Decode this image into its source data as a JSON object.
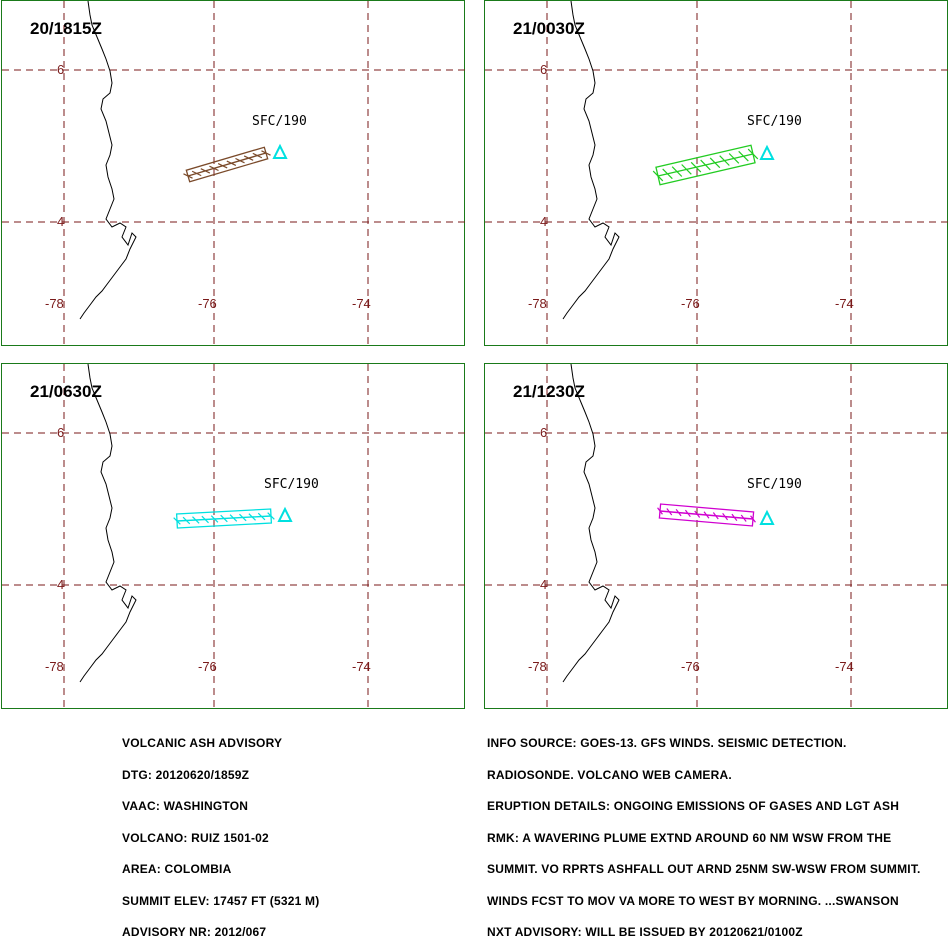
{
  "panels": [
    {
      "time": "20/1815Z",
      "level": "SFC/190",
      "color": "#7a4a2a"
    },
    {
      "time": "21/0030Z",
      "level": "SFC/190",
      "color": "#22cc22"
    },
    {
      "time": "21/0630Z",
      "level": "SFC/190",
      "color": "#00e0e0"
    },
    {
      "time": "21/1230Z",
      "level": "SFC/190",
      "color": "#d000d0"
    }
  ],
  "grid": {
    "lat_labels": [
      "6",
      "4"
    ],
    "lon_labels": [
      "-78",
      "-76",
      "-74"
    ],
    "line_color": "#7a1a1a"
  },
  "volcano_marker_color": "#00e0e0",
  "advisory_left": [
    "VOLCANIC ASH ADVISORY",
    "DTG: 20120620/1859Z",
    "VAAC: WASHINGTON",
    "VOLCANO: RUIZ 1501-02",
    "AREA: COLOMBIA",
    "SUMMIT ELEV: 17457 FT (5321 M)",
    "ADVISORY NR: 2012/067"
  ],
  "advisory_right": [
    "INFO SOURCE: GOES-13. GFS WINDS. SEISMIC DETECTION.",
    "RADIOSONDE. VOLCANO WEB CAMERA.",
    "ERUPTION DETAILS: ONGOING EMISSIONS OF GASES AND LGT ASH",
    "RMK: A WAVERING PLUME EXTND AROUND 60 NM WSW FROM THE",
    "SUMMIT. VO RPRTS ASHFALL OUT ARND 25NM SW-WSW FROM SUMMIT.",
    "WINDS FCST TO MOV VA MORE TO WEST BY MORNING. ...SWANSON",
    "NXT ADVISORY: WILL BE ISSUED BY 20120621/0100Z"
  ]
}
